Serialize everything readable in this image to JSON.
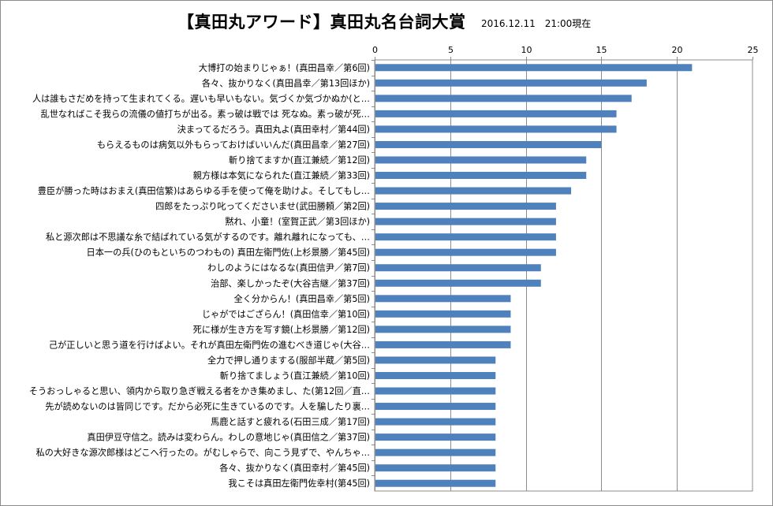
{
  "chart_data": {
    "type": "bar",
    "orientation": "horizontal",
    "title": "【真田丸アワード】真田丸名台詞大賞",
    "subtitle": "2016.12.11　21:00現在",
    "xlim": [
      0,
      25
    ],
    "xticks": [
      0,
      5,
      10,
      15,
      20,
      25
    ],
    "grid": true,
    "bar_color": "#4f81bd",
    "categories": [
      "大博打の始まりじゃぁ！(真田昌幸／第6回)",
      "各々、抜かりなく(真田昌幸／第13回ほか)",
      "人は誰もさだめを持って生まれてくる。遅いも早いもない。気づくか気づかぬか(と…",
      "乱世なればこそ我らの流儀の値打ちが出る。素っ破は戦では 死なぬ。素っ破が死…",
      "決まってるだろう。真田丸よ(真田幸村／第44回)",
      "もらえるものは病気以外もらっておけばいいんだ(真田昌幸／第27回)",
      "斬り捨てますか(直江兼続／第12回)",
      "親方様は本気になられた(直江兼続／第33回)",
      "豊臣が勝った時はおまえ(真田信繁)はあらゆる手を使って俺を助けよ。そしてもし…",
      "四郎をたっぷり叱ってくださいませ(武田勝頼／第2回)",
      "黙れ、小童！(室賀正武／第3回ほか)",
      "私と源次郎は不思議な糸で結ばれている気がするのです。離れ離れになっても、…",
      "日本一の兵(ひのもといちのつわもの) 真田左衛門佐(上杉景勝／第45回)",
      "わしのようにはなるな(真田信尹／第7回)",
      "治部、楽しかったぞ(大谷吉継／第37回)",
      "全く分からん！(真田昌幸／第5回)",
      "じゃがではござらん！(真田信幸／第10回)",
      "死に様が生き方を写す鏡(上杉景勝／第12回)",
      "己が正しいと思う道を行けばよい。それが真田左衛門佐の進むべき道じゃ(大谷…",
      "全力で押し通りまする(服部半蔵／第5回)",
      "斬り捨てましょう(直江兼続／第10回)",
      "そうおっしゃると思い、領内から取り急ぎ戦える者をかき集めまし、た(第12回／直…",
      "先が読めないのは皆同じです。だから必死に生きているのです。人を騙したり裏…",
      "馬鹿と話すと疲れる(石田三成／第17回)",
      "真田伊豆守信之。読みは変わらん。わしの意地じゃ(真田信之／第37回)",
      "私の大好きな源次郎様はどこへ行ったの。がむしゃらで、向こう見ずで、やんちゃ…",
      "各々、抜かりなく(真田幸村／第45回)",
      "我こそは真田左衛門佐幸村(第45回)"
    ],
    "values": [
      21,
      18,
      17,
      16,
      16,
      15,
      14,
      14,
      13,
      12,
      12,
      12,
      12,
      11,
      11,
      9,
      9,
      9,
      9,
      8,
      8,
      8,
      8,
      8,
      8,
      8,
      8,
      8
    ]
  }
}
